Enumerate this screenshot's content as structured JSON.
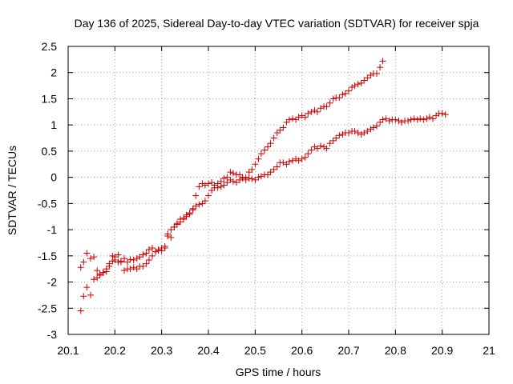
{
  "chart_data": {
    "type": "scatter",
    "title": "Day 136 of 2025, Sidereal Day-to-day VTEC variation (SDTVAR) for receiver spja",
    "xlabel": "GPS time / hours",
    "ylabel": "SDTVAR / TECUs",
    "xlim": [
      20.1,
      21.0
    ],
    "ylim": [
      -3,
      2.5
    ],
    "xticks": [
      "20.1",
      "20.2",
      "20.3",
      "20.4",
      "20.5",
      "20.6",
      "20.7",
      "20.8",
      "20.9",
      "21"
    ],
    "yticks": [
      "-3",
      "-2.5",
      "-2",
      "-1.5",
      "-1",
      "-0.5",
      "0",
      "0.5",
      "1",
      "1.5",
      "2",
      "2.5"
    ],
    "grid": true,
    "marker": "+",
    "color": "#cc0000",
    "series": [
      {
        "points": [
          [
            20.127,
            -2.55
          ],
          [
            20.133,
            -2.27
          ],
          [
            20.14,
            -2.1
          ],
          [
            20.148,
            -2.25
          ],
          [
            20.155,
            -1.95
          ],
          [
            20.162,
            -1.92
          ],
          [
            20.168,
            -1.87
          ],
          [
            20.175,
            -1.82
          ],
          [
            20.182,
            -1.8
          ],
          [
            20.188,
            -1.7
          ],
          [
            20.195,
            -1.6
          ],
          [
            20.2,
            -1.58
          ],
          [
            20.207,
            -1.62
          ],
          [
            20.213,
            -1.6
          ],
          [
            20.22,
            -1.55
          ],
          [
            20.227,
            -1.62
          ],
          [
            20.233,
            -1.57
          ],
          [
            20.24,
            -1.58
          ],
          [
            20.247,
            -1.55
          ],
          [
            20.253,
            -1.52
          ],
          [
            20.26,
            -1.48
          ],
          [
            20.267,
            -1.45
          ],
          [
            20.273,
            -1.38
          ],
          [
            20.28,
            -1.35
          ],
          [
            20.287,
            -1.42
          ],
          [
            20.293,
            -1.4
          ],
          [
            20.3,
            -1.35
          ],
          [
            20.307,
            -1.32
          ],
          [
            20.313,
            -1.08
          ],
          [
            20.32,
            -1.0
          ],
          [
            20.327,
            -0.95
          ],
          [
            20.333,
            -0.9
          ],
          [
            20.34,
            -0.85
          ],
          [
            20.347,
            -0.8
          ],
          [
            20.353,
            -0.75
          ],
          [
            20.36,
            -0.7
          ],
          [
            20.367,
            -0.62
          ],
          [
            20.373,
            -0.55
          ],
          [
            20.38,
            -0.52
          ],
          [
            20.387,
            -0.5
          ],
          [
            20.393,
            -0.45
          ],
          [
            20.4,
            -0.35
          ],
          [
            20.407,
            -0.25
          ],
          [
            20.413,
            -0.2
          ],
          [
            20.42,
            -0.2
          ],
          [
            20.427,
            -0.18
          ],
          [
            20.433,
            -0.15
          ],
          [
            20.44,
            -0.1
          ],
          [
            20.447,
            -0.05
          ],
          [
            20.453,
            -0.08
          ],
          [
            20.46,
            -0.1
          ],
          [
            20.467,
            -0.05
          ],
          [
            20.473,
            0.0
          ],
          [
            20.48,
            0.0
          ],
          [
            20.487,
            0.1
          ],
          [
            20.493,
            0.15
          ],
          [
            20.5,
            0.25
          ],
          [
            20.507,
            0.35
          ],
          [
            20.513,
            0.45
          ],
          [
            20.52,
            0.52
          ],
          [
            20.527,
            0.58
          ],
          [
            20.533,
            0.65
          ],
          [
            20.54,
            0.75
          ],
          [
            20.547,
            0.85
          ],
          [
            20.553,
            0.9
          ],
          [
            20.56,
            0.95
          ],
          [
            20.567,
            1.05
          ],
          [
            20.573,
            1.1
          ],
          [
            20.58,
            1.12
          ],
          [
            20.587,
            1.1
          ],
          [
            20.593,
            1.15
          ],
          [
            20.6,
            1.18
          ],
          [
            20.607,
            1.15
          ],
          [
            20.613,
            1.22
          ],
          [
            20.62,
            1.25
          ],
          [
            20.627,
            1.28
          ],
          [
            20.633,
            1.25
          ],
          [
            20.64,
            1.32
          ],
          [
            20.647,
            1.35
          ],
          [
            20.653,
            1.35
          ],
          [
            20.66,
            1.42
          ],
          [
            20.667,
            1.5
          ],
          [
            20.673,
            1.52
          ],
          [
            20.68,
            1.52
          ],
          [
            20.687,
            1.58
          ],
          [
            20.693,
            1.6
          ],
          [
            20.7,
            1.65
          ],
          [
            20.707,
            1.72
          ],
          [
            20.713,
            1.75
          ],
          [
            20.72,
            1.78
          ],
          [
            20.727,
            1.8
          ],
          [
            20.733,
            1.85
          ],
          [
            20.74,
            1.9
          ],
          [
            20.747,
            1.95
          ],
          [
            20.753,
            1.98
          ],
          [
            20.76,
            1.98
          ],
          [
            20.767,
            2.1
          ],
          [
            20.773,
            2.22
          ]
        ]
      },
      {
        "points": [
          [
            20.127,
            -1.72
          ],
          [
            20.133,
            -1.62
          ],
          [
            20.14,
            -1.45
          ],
          [
            20.148,
            -1.55
          ],
          [
            20.155,
            -1.52
          ],
          [
            20.162,
            -1.78
          ],
          [
            20.168,
            -1.85
          ],
          [
            20.175,
            -1.82
          ],
          [
            20.182,
            -1.75
          ],
          [
            20.188,
            -1.65
          ],
          [
            20.195,
            -1.5
          ],
          [
            20.2,
            -1.52
          ],
          [
            20.207,
            -1.48
          ],
          [
            20.213,
            -1.62
          ],
          [
            20.22,
            -1.78
          ],
          [
            20.227,
            -1.75
          ],
          [
            20.233,
            -1.75
          ],
          [
            20.24,
            -1.72
          ],
          [
            20.247,
            -1.75
          ],
          [
            20.253,
            -1.7
          ],
          [
            20.26,
            -1.7
          ],
          [
            20.267,
            -1.65
          ],
          [
            20.273,
            -1.58
          ],
          [
            20.28,
            -1.5
          ],
          [
            20.287,
            -1.42
          ],
          [
            20.293,
            -1.38
          ],
          [
            20.3,
            -1.4
          ],
          [
            20.307,
            -1.35
          ],
          [
            20.313,
            -1.12
          ],
          [
            20.32,
            -1.15
          ],
          [
            20.327,
            -0.95
          ],
          [
            20.333,
            -0.88
          ],
          [
            20.34,
            -0.8
          ],
          [
            20.347,
            -0.78
          ],
          [
            20.353,
            -0.72
          ],
          [
            20.36,
            -0.68
          ],
          [
            20.367,
            -0.6
          ],
          [
            20.373,
            -0.35
          ],
          [
            20.38,
            -0.18
          ],
          [
            20.387,
            -0.12
          ],
          [
            20.393,
            -0.15
          ],
          [
            20.4,
            -0.12
          ],
          [
            20.407,
            -0.1
          ],
          [
            20.413,
            -0.15
          ],
          [
            20.42,
            -0.12
          ],
          [
            20.427,
            -0.08
          ],
          [
            20.433,
            -0.02
          ],
          [
            20.44,
            0.0
          ],
          [
            20.447,
            0.1
          ],
          [
            20.453,
            0.08
          ],
          [
            20.46,
            0.05
          ],
          [
            20.467,
            0.05
          ],
          [
            20.473,
            -0.02
          ],
          [
            20.48,
            -0.05
          ],
          [
            20.487,
            -0.02
          ],
          [
            20.493,
            -0.03
          ],
          [
            20.5,
            -0.05
          ],
          [
            20.507,
            0.0
          ],
          [
            20.513,
            0.02
          ],
          [
            20.52,
            0.05
          ],
          [
            20.527,
            0.05
          ],
          [
            20.533,
            0.1
          ],
          [
            20.54,
            0.15
          ],
          [
            20.547,
            0.2
          ],
          [
            20.553,
            0.28
          ],
          [
            20.56,
            0.28
          ],
          [
            20.567,
            0.25
          ],
          [
            20.573,
            0.3
          ],
          [
            20.58,
            0.32
          ],
          [
            20.587,
            0.35
          ],
          [
            20.593,
            0.32
          ],
          [
            20.6,
            0.35
          ],
          [
            20.607,
            0.38
          ],
          [
            20.613,
            0.45
          ],
          [
            20.62,
            0.52
          ],
          [
            20.627,
            0.58
          ],
          [
            20.633,
            0.55
          ],
          [
            20.64,
            0.6
          ],
          [
            20.647,
            0.58
          ],
          [
            20.653,
            0.55
          ],
          [
            20.66,
            0.65
          ],
          [
            20.667,
            0.7
          ],
          [
            20.673,
            0.75
          ],
          [
            20.68,
            0.8
          ],
          [
            20.687,
            0.82
          ],
          [
            20.693,
            0.85
          ],
          [
            20.7,
            0.85
          ],
          [
            20.707,
            0.88
          ],
          [
            20.713,
            0.88
          ],
          [
            20.72,
            0.85
          ],
          [
            20.727,
            0.82
          ],
          [
            20.733,
            0.85
          ],
          [
            20.74,
            0.88
          ],
          [
            20.747,
            0.92
          ],
          [
            20.753,
            0.95
          ],
          [
            20.76,
            0.98
          ],
          [
            20.767,
            1.05
          ],
          [
            20.773,
            1.1
          ],
          [
            20.78,
            1.12
          ],
          [
            20.787,
            1.08
          ],
          [
            20.793,
            1.1
          ],
          [
            20.8,
            1.1
          ],
          [
            20.807,
            1.08
          ],
          [
            20.813,
            1.05
          ],
          [
            20.82,
            1.08
          ],
          [
            20.827,
            1.08
          ],
          [
            20.833,
            1.1
          ],
          [
            20.84,
            1.12
          ],
          [
            20.847,
            1.1
          ],
          [
            20.853,
            1.12
          ],
          [
            20.86,
            1.1
          ],
          [
            20.867,
            1.12
          ],
          [
            20.873,
            1.15
          ],
          [
            20.88,
            1.12
          ],
          [
            20.887,
            1.18
          ],
          [
            20.893,
            1.22
          ],
          [
            20.9,
            1.22
          ],
          [
            20.907,
            1.2
          ]
        ]
      }
    ]
  }
}
